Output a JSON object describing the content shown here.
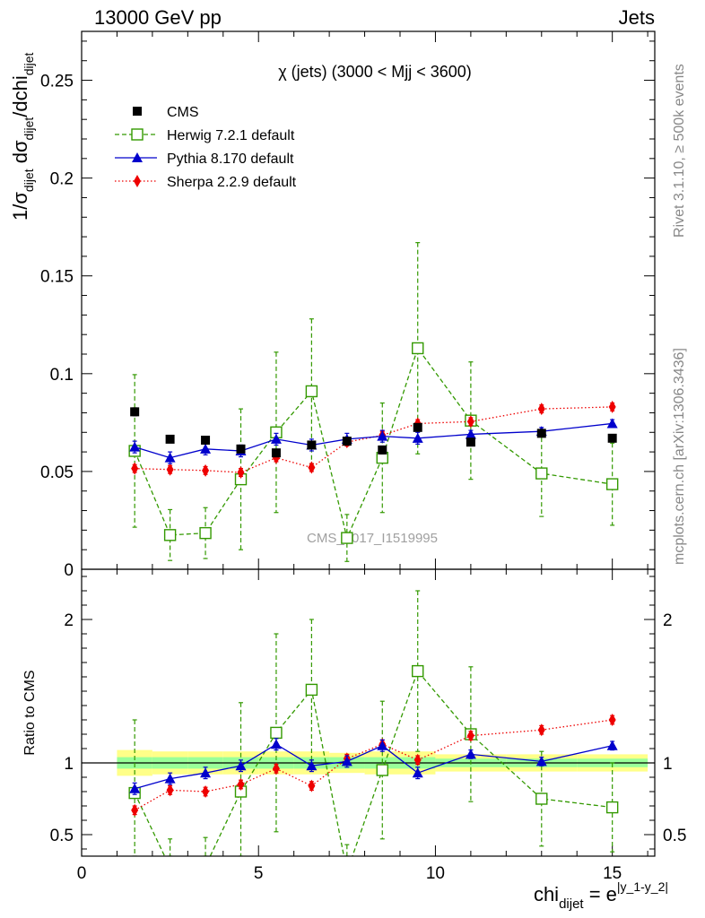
{
  "header": {
    "left": "13000 GeV pp",
    "right": "Jets"
  },
  "side": {
    "rivet": "Rivet 3.1.10, ≥ 500k events",
    "mcplots": "mcplots.cern.ch [arXiv:1306.3436]"
  },
  "main": {
    "title": "χ (jets) (3000 < Mjj < 3600)",
    "ylabel": "1/σ_dijet dσ_dijet/dchi_dijet",
    "watermark": "CMS_2017_I1519995"
  },
  "ratio": {
    "ylabel": "Ratio to CMS"
  },
  "xaxis": {
    "label": "chi_dijet = e^|y_1-y_2|"
  },
  "legend": [
    {
      "label": "CMS",
      "color": "#000000"
    },
    {
      "label": "Herwig 7.2.1 default",
      "color": "#339900"
    },
    {
      "label": "Pythia 8.170 default",
      "color": "#0000cc"
    },
    {
      "label": "Sherpa 2.2.9 default",
      "color": "#ee0000"
    }
  ],
  "chart_data": {
    "type": "scatter",
    "title": "χ (jets) (3000 < Mjj < 3600)",
    "x_range": [
      0,
      16.2
    ],
    "main_ylim": [
      0,
      0.275
    ],
    "main_yticks": [
      "0",
      "0.05",
      "0.1",
      "0.15",
      "0.2",
      "0.25"
    ],
    "ratio_ylim": [
      0.35,
      2.35
    ],
    "ratio_yticks": [
      "0.5",
      "1",
      "2"
    ],
    "xticks": [
      "0",
      "5",
      "10",
      "15"
    ],
    "bins": [
      [
        1,
        2
      ],
      [
        2,
        3
      ],
      [
        3,
        4
      ],
      [
        4,
        5
      ],
      [
        5,
        6
      ],
      [
        6,
        7
      ],
      [
        7,
        8
      ],
      [
        8,
        9
      ],
      [
        9,
        10
      ],
      [
        10,
        12
      ],
      [
        12,
        14
      ],
      [
        14,
        16
      ]
    ],
    "x": [
      1.5,
      2.5,
      3.5,
      4.5,
      5.5,
      6.5,
      7.5,
      8.5,
      9.5,
      11,
      13,
      15
    ],
    "series": [
      {
        "name": "CMS",
        "style": "data",
        "y": [
          0.0805,
          0.0665,
          0.066,
          0.0615,
          0.0595,
          0.0635,
          0.0655,
          0.061,
          0.0725,
          0.065,
          0.0695,
          0.067
        ],
        "err": [
          0.002,
          0.001,
          0.001,
          0.001,
          0.001,
          0.001,
          0.001,
          0.002,
          0.001,
          0.001,
          0.001,
          0.001
        ]
      },
      {
        "name": "Herwig 7.2.1 default",
        "style": "herwig",
        "y": [
          0.0605,
          0.0175,
          0.0185,
          0.046,
          0.07,
          0.091,
          0.016,
          0.057,
          0.113,
          0.076,
          0.049,
          0.0435
        ],
        "err": [
          0.039,
          0.013,
          0.013,
          0.036,
          0.041,
          0.037,
          0.012,
          0.028,
          0.054,
          0.03,
          0.022,
          0.021
        ],
        "ratio": [
          0.79,
          0.27,
          0.28,
          0.8,
          1.21,
          1.51,
          0.24,
          0.95,
          1.64,
          1.2,
          0.75,
          0.69
        ],
        "ratio_err": [
          0.51,
          0.2,
          0.2,
          0.62,
          0.69,
          0.49,
          0.19,
          0.48,
          0.56,
          0.47,
          0.33,
          0.31
        ]
      },
      {
        "name": "Pythia 8.170 default",
        "style": "pythia",
        "y": [
          0.0625,
          0.057,
          0.0615,
          0.0605,
          0.0665,
          0.0635,
          0.0665,
          0.068,
          0.067,
          0.069,
          0.0705,
          0.0745
        ],
        "err": [
          0.003,
          0.003,
          0.003,
          0.003,
          0.003,
          0.003,
          0.003,
          0.003,
          0.003,
          0.002,
          0.002,
          0.002
        ],
        "ratio": [
          0.82,
          0.89,
          0.93,
          0.98,
          1.13,
          0.98,
          1.01,
          1.12,
          0.93,
          1.06,
          1.01,
          1.12
        ],
        "ratio_err": [
          0.04,
          0.04,
          0.04,
          0.04,
          0.04,
          0.04,
          0.04,
          0.04,
          0.04,
          0.03,
          0.03,
          0.03
        ]
      },
      {
        "name": "Sherpa 2.2.9 default",
        "style": "sherpa",
        "y": [
          0.0515,
          0.051,
          0.0505,
          0.0495,
          0.057,
          0.052,
          0.065,
          0.0685,
          0.0745,
          0.0755,
          0.082,
          0.083
        ],
        "err": [
          0.002,
          0.002,
          0.002,
          0.002,
          0.002,
          0.002,
          0.002,
          0.002,
          0.002,
          0.002,
          0.002,
          0.002
        ],
        "ratio": [
          0.67,
          0.81,
          0.8,
          0.85,
          0.96,
          0.84,
          1.03,
          1.13,
          1.02,
          1.19,
          1.23,
          1.3
        ],
        "ratio_err": [
          0.03,
          0.03,
          0.03,
          0.03,
          0.03,
          0.03,
          0.03,
          0.03,
          0.03,
          0.03,
          0.03,
          0.03
        ]
      }
    ],
    "ratio_bands": {
      "inner_halfwidth": [
        0.04,
        0.04,
        0.04,
        0.04,
        0.04,
        0.04,
        0.04,
        0.04,
        0.04,
        0.03,
        0.03,
        0.03
      ],
      "outer_halfwidth": [
        0.09,
        0.08,
        0.08,
        0.08,
        0.08,
        0.08,
        0.07,
        0.08,
        0.08,
        0.06,
        0.06,
        0.06
      ],
      "inner_color": "#99ff99",
      "outer_color": "#ffff88"
    }
  }
}
